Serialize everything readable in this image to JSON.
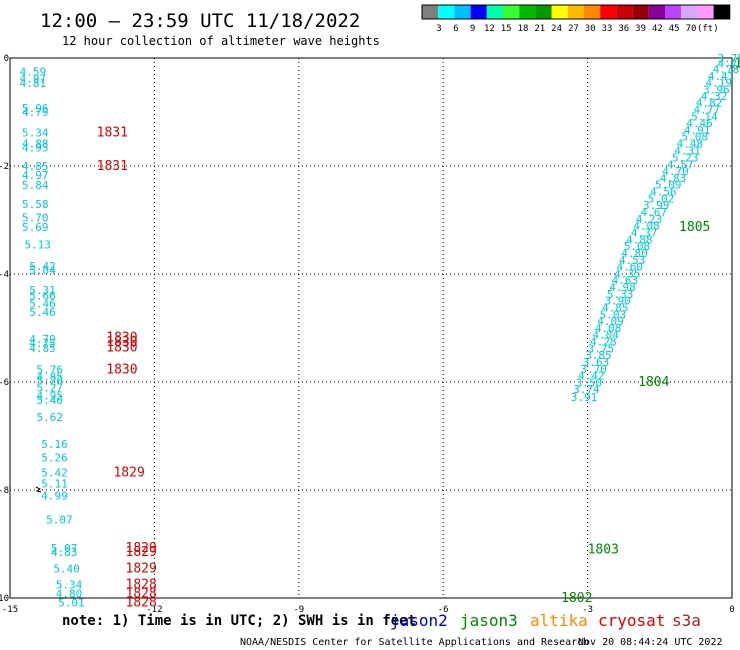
{
  "header": {
    "title": "12:00 – 23:59 UTC 11/18/2022",
    "subtitle": "12 hour collection of altimeter wave heights"
  },
  "legend": {
    "colors": [
      "#7f7f7f",
      "#00ffff",
      "#00bfff",
      "#0000ff",
      "#00ffaa",
      "#33ff33",
      "#00bb00",
      "#009900",
      "#ffff00",
      "#ffbb00",
      "#ff8800",
      "#ff0000",
      "#cc0000",
      "#990000",
      "#880099",
      "#bb44ff",
      "#d8a8ff",
      "#ff99ff",
      "#000000"
    ],
    "labels": [
      "3",
      "6",
      "9",
      "12",
      "15",
      "18",
      "21",
      "24",
      "27",
      "30",
      "33",
      "36",
      "39",
      "42",
      "45",
      "70",
      "(ft)"
    ]
  },
  "footer": {
    "note": "note: 1) Time is in UTC; 2) SWH is in feet",
    "credit": "NOAA/NESDIS Center for Satellite Applications and Research",
    "timestamp": "Nov 20 08:44:24 UTC 2022"
  },
  "missions": [
    {
      "name": "jason2",
      "color": "#0000cc"
    },
    {
      "name": "jason3",
      "color": "#008800"
    },
    {
      "name": "altika",
      "color": "#ff8800"
    },
    {
      "name": "cryosat",
      "color": "#dd0000"
    },
    {
      "name": "s3a",
      "color": "#aa2222"
    }
  ],
  "chart_data": {
    "type": "scatter",
    "xlim": [
      -15,
      0
    ],
    "ylim": [
      -10,
      0
    ],
    "x_ticks": [
      "-15",
      "-12",
      "-9",
      "-6",
      "-3",
      "0"
    ],
    "y_ticks": [
      "0",
      "-2",
      "-4",
      "-6",
      "-8",
      "-10"
    ],
    "grid": true,
    "wave_color": "#00cccc",
    "track_color": "#008800",
    "time_color": "#dd0000",
    "wave_heights": [
      {
        "x": -14.8,
        "y": -0.25,
        "v": "4.59"
      },
      {
        "x": -14.8,
        "y": -0.38,
        "v": "4.97"
      },
      {
        "x": -14.8,
        "y": -0.46,
        "v": "4.81"
      },
      {
        "x": -14.75,
        "y": -0.93,
        "v": "5.96"
      },
      {
        "x": -14.75,
        "y": -1.0,
        "v": "4.79"
      },
      {
        "x": -14.75,
        "y": -1.38,
        "v": "5.34"
      },
      {
        "x": -14.75,
        "y": -1.58,
        "v": "4.88"
      },
      {
        "x": -14.75,
        "y": -1.66,
        "v": "4.95"
      },
      {
        "x": -14.75,
        "y": -2.0,
        "v": "4.85"
      },
      {
        "x": -14.75,
        "y": -2.17,
        "v": "4.97"
      },
      {
        "x": -14.75,
        "y": -2.35,
        "v": "5.84"
      },
      {
        "x": -14.75,
        "y": -2.7,
        "v": "5.58"
      },
      {
        "x": -14.75,
        "y": -2.95,
        "v": "5.70"
      },
      {
        "x": -14.75,
        "y": -3.13,
        "v": "5.69"
      },
      {
        "x": -14.7,
        "y": -3.45,
        "v": "5.13"
      },
      {
        "x": -14.6,
        "y": -3.85,
        "v": "5.42"
      },
      {
        "x": -14.6,
        "y": -3.93,
        "v": "5.04"
      },
      {
        "x": -14.6,
        "y": -4.3,
        "v": "5.31"
      },
      {
        "x": -14.6,
        "y": -4.4,
        "v": "5.66"
      },
      {
        "x": -14.6,
        "y": -4.55,
        "v": "5.46"
      },
      {
        "x": -14.6,
        "y": -4.7,
        "v": "5.46"
      },
      {
        "x": -14.6,
        "y": -5.2,
        "v": "4.79"
      },
      {
        "x": -14.6,
        "y": -5.28,
        "v": "4.75"
      },
      {
        "x": -14.6,
        "y": -5.37,
        "v": "4.85"
      },
      {
        "x": -14.45,
        "y": -5.77,
        "v": "5.76"
      },
      {
        "x": -14.45,
        "y": -5.9,
        "v": "4.85"
      },
      {
        "x": -14.45,
        "y": -5.97,
        "v": "5.20"
      },
      {
        "x": -14.45,
        "y": -6.1,
        "v": "5.27"
      },
      {
        "x": -14.45,
        "y": -6.25,
        "v": "4.95"
      },
      {
        "x": -14.45,
        "y": -6.33,
        "v": "5.46"
      },
      {
        "x": -14.45,
        "y": -6.65,
        "v": "5.62"
      },
      {
        "x": -14.35,
        "y": -7.15,
        "v": "5.16"
      },
      {
        "x": -14.35,
        "y": -7.4,
        "v": "5.26"
      },
      {
        "x": -14.35,
        "y": -7.68,
        "v": "5.42"
      },
      {
        "x": -14.35,
        "y": -7.88,
        "v": "5.11"
      },
      {
        "x": -14.35,
        "y": -8.1,
        "v": "4.99"
      },
      {
        "x": -14.25,
        "y": -8.55,
        "v": "5.07"
      },
      {
        "x": -14.15,
        "y": -9.07,
        "v": "5.07"
      },
      {
        "x": -14.15,
        "y": -9.15,
        "v": "4.83"
      },
      {
        "x": -14.1,
        "y": -9.45,
        "v": "5.40"
      },
      {
        "x": -14.05,
        "y": -9.75,
        "v": "5.34"
      },
      {
        "x": -14.05,
        "y": -9.92,
        "v": "4.80"
      },
      {
        "x": -14.0,
        "y": -10.08,
        "v": "5.01"
      },
      {
        "x": -0.3,
        "y": 0.0,
        "v": "3.75"
      },
      {
        "x": -0.3,
        "y": -0.1,
        "v": "4.76"
      },
      {
        "x": -0.4,
        "y": -0.2,
        "v": "4.78"
      },
      {
        "x": -0.5,
        "y": -0.33,
        "v": "4.41"
      },
      {
        "x": -0.55,
        "y": -0.45,
        "v": "4.19"
      },
      {
        "x": -0.6,
        "y": -0.58,
        "v": "3.96"
      },
      {
        "x": -0.65,
        "y": -0.7,
        "v": "4.32"
      },
      {
        "x": -0.75,
        "y": -0.82,
        "v": "4.82"
      },
      {
        "x": -0.8,
        "y": -0.95,
        "v": "4.77"
      },
      {
        "x": -0.85,
        "y": -1.08,
        "v": "5.14"
      },
      {
        "x": -0.95,
        "y": -1.2,
        "v": "4.46"
      },
      {
        "x": -1.0,
        "y": -1.33,
        "v": "4.91"
      },
      {
        "x": -1.05,
        "y": -1.45,
        "v": "5.08"
      },
      {
        "x": -1.15,
        "y": -1.58,
        "v": "4.48"
      },
      {
        "x": -1.2,
        "y": -1.71,
        "v": "4.31"
      },
      {
        "x": -1.25,
        "y": -1.84,
        "v": "5.23"
      },
      {
        "x": -1.35,
        "y": -1.97,
        "v": "4.57"
      },
      {
        "x": -1.45,
        "y": -2.09,
        "v": "4.70"
      },
      {
        "x": -1.5,
        "y": -2.22,
        "v": "4.83"
      },
      {
        "x": -1.6,
        "y": -2.34,
        "v": "5.09"
      },
      {
        "x": -1.7,
        "y": -2.47,
        "v": "4.56"
      },
      {
        "x": -1.75,
        "y": -2.6,
        "v": "5.02"
      },
      {
        "x": -1.85,
        "y": -2.72,
        "v": "3.99"
      },
      {
        "x": -1.9,
        "y": -2.85,
        "v": "4.67"
      },
      {
        "x": -2.0,
        "y": -2.98,
        "v": "4.23"
      },
      {
        "x": -2.05,
        "y": -3.1,
        "v": "4.08"
      },
      {
        "x": -2.1,
        "y": -3.23,
        "v": "4.37"
      },
      {
        "x": -2.2,
        "y": -3.36,
        "v": "4.88"
      },
      {
        "x": -2.25,
        "y": -3.48,
        "v": "5.08"
      },
      {
        "x": -2.3,
        "y": -3.61,
        "v": "4.80"
      },
      {
        "x": -2.35,
        "y": -3.74,
        "v": "4.53"
      },
      {
        "x": -2.4,
        "y": -3.86,
        "v": "4.60"
      },
      {
        "x": -2.45,
        "y": -3.99,
        "v": "4.35"
      },
      {
        "x": -2.5,
        "y": -4.11,
        "v": "4.63"
      },
      {
        "x": -2.55,
        "y": -4.24,
        "v": "4.98"
      },
      {
        "x": -2.6,
        "y": -4.37,
        "v": "5.33"
      },
      {
        "x": -2.65,
        "y": -4.49,
        "v": "3.90"
      },
      {
        "x": -2.7,
        "y": -4.62,
        "v": "4.85"
      },
      {
        "x": -2.75,
        "y": -4.75,
        "v": "5.03"
      },
      {
        "x": -2.8,
        "y": -4.87,
        "v": "4.09"
      },
      {
        "x": -2.85,
        "y": -5.0,
        "v": "4.08"
      },
      {
        "x": -2.9,
        "y": -5.12,
        "v": "4.04"
      },
      {
        "x": -2.95,
        "y": -5.25,
        "v": "4.28"
      },
      {
        "x": -3.0,
        "y": -5.38,
        "v": "3.75"
      },
      {
        "x": -3.05,
        "y": -5.5,
        "v": "3.85"
      },
      {
        "x": -3.1,
        "y": -5.63,
        "v": "3.63"
      },
      {
        "x": -3.15,
        "y": -5.76,
        "v": "3.70"
      },
      {
        "x": -3.2,
        "y": -5.88,
        "v": "4.42"
      },
      {
        "x": -3.25,
        "y": -6.01,
        "v": "3.50"
      },
      {
        "x": -3.3,
        "y": -6.13,
        "v": "3.74"
      },
      {
        "x": -3.35,
        "y": -6.28,
        "v": "3.91"
      }
    ],
    "pass_times": [
      {
        "x": -13.2,
        "y": -1.38,
        "label": "1831",
        "color": "#dd0000"
      },
      {
        "x": -13.2,
        "y": -2.0,
        "label": "1831",
        "color": "#dd0000"
      },
      {
        "x": -13.0,
        "y": -5.18,
        "label": "1830",
        "color": "#dd0000"
      },
      {
        "x": -13.0,
        "y": -5.26,
        "label": "1830",
        "color": "#dd0000"
      },
      {
        "x": -13.0,
        "y": -5.36,
        "label": "1830",
        "color": "#dd0000"
      },
      {
        "x": -13.0,
        "y": -5.77,
        "label": "1830",
        "color": "#dd0000"
      },
      {
        "x": -12.85,
        "y": -7.68,
        "label": "1829",
        "color": "#dd0000"
      },
      {
        "x": -12.6,
        "y": -9.07,
        "label": "1829",
        "color": "#dd0000"
      },
      {
        "x": -12.6,
        "y": -9.15,
        "label": "1829",
        "color": "#dd0000"
      },
      {
        "x": -12.6,
        "y": -9.45,
        "label": "1829",
        "color": "#dd0000"
      },
      {
        "x": -12.6,
        "y": -9.75,
        "label": "1828",
        "color": "#dd0000"
      },
      {
        "x": -12.6,
        "y": -9.92,
        "label": "1828",
        "color": "#dd0000"
      },
      {
        "x": -12.6,
        "y": -10.08,
        "label": "1828",
        "color": "#dd0000"
      },
      {
        "x": 0.05,
        "y": -0.1,
        "label": "1",
        "color": "#008800"
      },
      {
        "x": -1.1,
        "y": -3.13,
        "label": "1805",
        "color": "#008800"
      },
      {
        "x": -1.95,
        "y": -6.0,
        "label": "1804",
        "color": "#008800"
      },
      {
        "x": -3.0,
        "y": -9.1,
        "label": "1803",
        "color": "#008800"
      },
      {
        "x": -3.55,
        "y": -10.0,
        "label": "1802",
        "color": "#008800"
      }
    ]
  }
}
